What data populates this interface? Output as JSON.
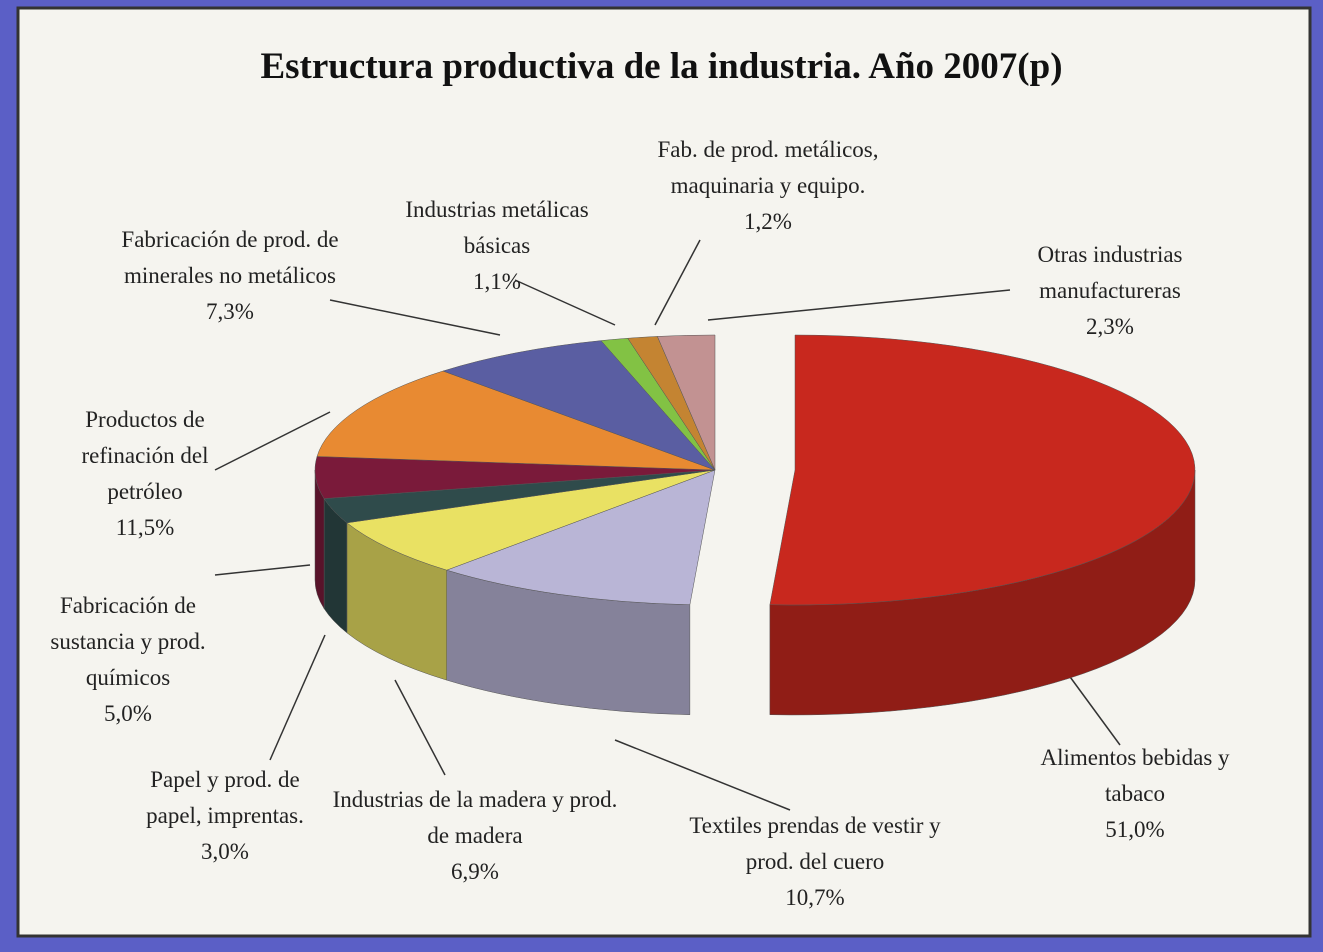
{
  "chart_data": {
    "type": "pie",
    "title": "Estructura productiva de la industria. Año 2007(p)",
    "categories": [
      "Alimentos bebidas y tabaco",
      "Textiles prendas de vestir y prod. del cuero",
      "Industrias de la madera y prod. de madera",
      "Papel y prod. de papel, imprentas.",
      "Fabricación de sustancia y prod. químicos",
      "Productos de refinación del petróleo",
      "Fabricación de prod. de minerales no metálicos",
      "Industrias metálicas básicas",
      "Fab. de prod. metálicos, maquinaria y equipo.",
      "Otras industrias manufactureras"
    ],
    "values": [
      51.0,
      10.7,
      6.9,
      3.0,
      5.0,
      11.5,
      7.3,
      1.1,
      1.2,
      2.3
    ],
    "value_labels": [
      "51,0%",
      "10,7%",
      "6,9%",
      "3,0%",
      "5,0%",
      "11,5%",
      "7,3%",
      "1,1%",
      "1,2%",
      "2,3%"
    ],
    "colors": [
      "#c8281e",
      "#b9b5d6",
      "#e9e163",
      "#2f4b4b",
      "#7a1a3a",
      "#e88a32",
      "#5a5ea2",
      "#82c244",
      "#c48432",
      "#c29292"
    ]
  }
}
